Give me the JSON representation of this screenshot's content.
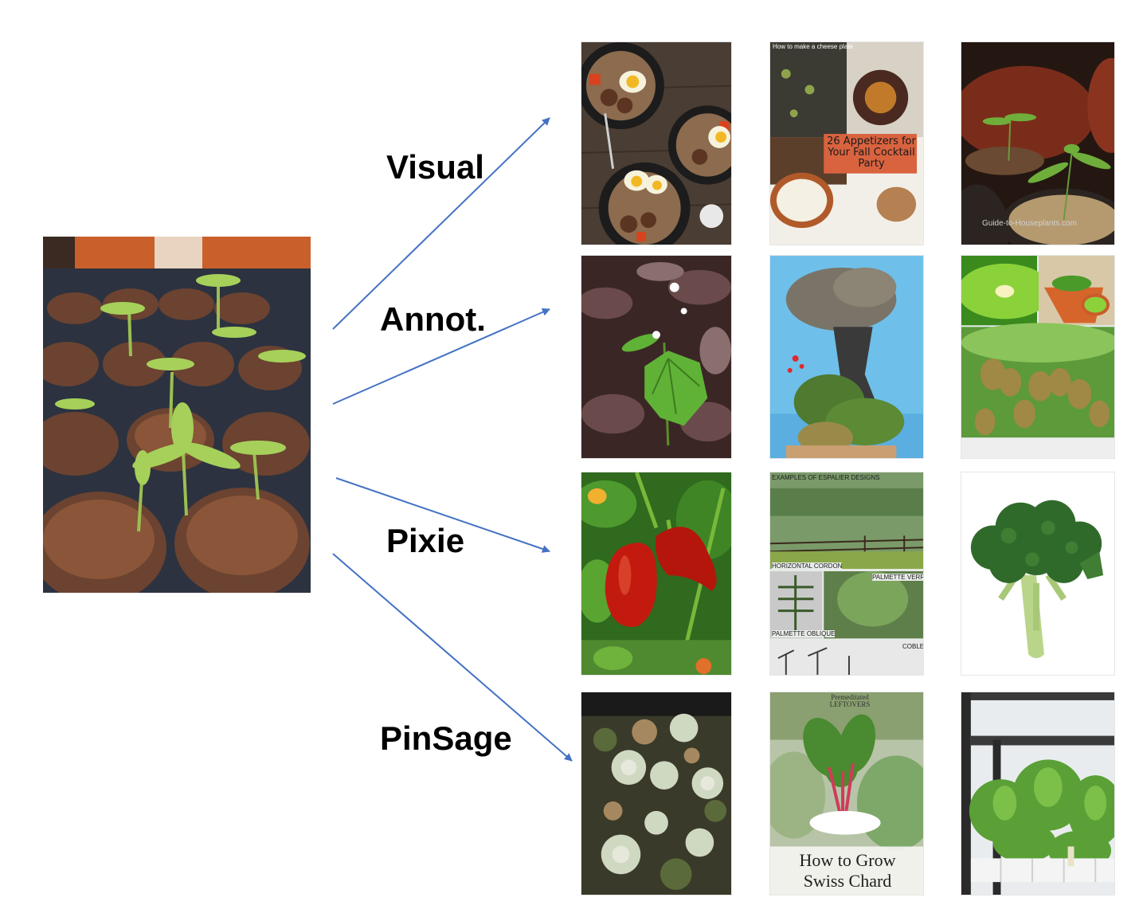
{
  "labels": {
    "visual": "Visual",
    "annot": "Annot.",
    "pixie": "Pixie",
    "pinsage": "PinSage"
  },
  "tiles": {
    "r1c2": {
      "top": "How to make a cheese plate",
      "headline": "26 Appetizers for Your Fall Cocktail Party"
    },
    "r1c3": {
      "watermark": "Guide-to-Houseplants.com"
    },
    "r3c2": {
      "title": "EXAMPLES OF ESPALIER DESIGNS",
      "captions": [
        "HORIZONTAL CORDON",
        "PALMETTE VERRIER",
        "PALMETTE OBLIQUE",
        "COBLET"
      ]
    },
    "r4c2": {
      "brand": "Premeditated LEFTOVERS",
      "title_line1": "How to Grow",
      "title_line2": "Swiss Chard"
    }
  },
  "colors": {
    "arrow": "#4472c4"
  }
}
